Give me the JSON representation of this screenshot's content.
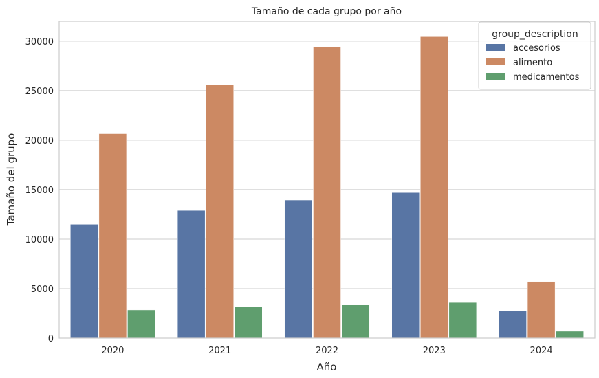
{
  "chart_data": {
    "type": "bar",
    "title": "Tamaño de cada grupo por año",
    "xlabel": "Año",
    "ylabel": "Tamaño del grupo",
    "categories": [
      "2020",
      "2021",
      "2022",
      "2023",
      "2024"
    ],
    "ylim": [
      0,
      32000
    ],
    "yticks": [
      0,
      5000,
      10000,
      15000,
      20000,
      25000,
      30000
    ],
    "grid": "horizontal",
    "legend": {
      "title": "group_description",
      "placement": "top-right"
    },
    "series": [
      {
        "name": "accesorios",
        "color": "#5875a4",
        "values": [
          11500,
          12900,
          13950,
          14700,
          2750
        ]
      },
      {
        "name": "alimento",
        "color": "#cc8963",
        "values": [
          20650,
          25600,
          29450,
          30450,
          5700
        ]
      },
      {
        "name": "medicamentos",
        "color": "#5f9e6e",
        "values": [
          2850,
          3150,
          3350,
          3600,
          700
        ]
      }
    ]
  }
}
